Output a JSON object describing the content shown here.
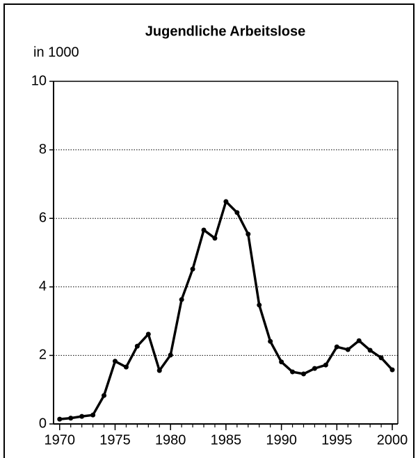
{
  "chart_data": {
    "type": "line",
    "title": "Jugendliche Arbeitslose",
    "y_label": "in 1000",
    "x": [
      1970,
      1971,
      1972,
      1973,
      1974,
      1975,
      1976,
      1977,
      1978,
      1979,
      1980,
      1981,
      1982,
      1983,
      1984,
      1985,
      1986,
      1987,
      1988,
      1989,
      1990,
      1991,
      1992,
      1993,
      1994,
      1995,
      1996,
      1997,
      1998,
      1999,
      2000
    ],
    "series": [
      {
        "name": "Jugendliche Arbeitslose",
        "color": "#000000",
        "values": [
          0.14,
          0.17,
          0.22,
          0.26,
          0.83,
          1.83,
          1.66,
          2.27,
          2.62,
          1.56,
          2.01,
          3.63,
          4.52,
          5.66,
          5.42,
          6.49,
          6.17,
          5.54,
          3.47,
          2.41,
          1.81,
          1.52,
          1.46,
          1.62,
          1.72,
          2.25,
          2.17,
          2.43,
          2.15,
          1.93,
          1.58
        ]
      }
    ],
    "xlim": [
      1969.45,
      2000.5
    ],
    "xticks": [
      1970,
      1975,
      1980,
      1985,
      1990,
      1995,
      2000
    ],
    "ylim": [
      0,
      10
    ],
    "yticks": [
      0,
      2,
      4,
      6,
      8,
      10
    ],
    "grid": true
  }
}
